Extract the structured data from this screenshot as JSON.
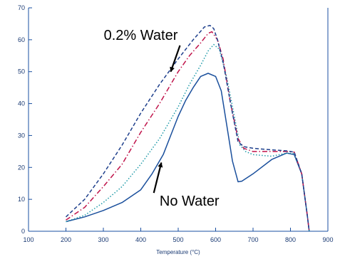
{
  "chart_data": {
    "type": "line",
    "title": "",
    "xlabel": "Temperature (°C)",
    "ylabel": "",
    "xlim": [
      100,
      900
    ],
    "ylim": [
      0,
      70
    ],
    "xticks": [
      "100",
      "200",
      "300",
      "400",
      "500",
      "600",
      "700",
      "800",
      "900"
    ],
    "yticks": [
      "0",
      "10",
      "20",
      "30",
      "40",
      "50",
      "60",
      "70"
    ],
    "grid": false,
    "colors": {
      "axis": "#1a4fa0",
      "tick_text": "#1a3a73"
    },
    "series": [
      {
        "color": "#1a4f9c",
        "style": "solid",
        "x": [
          200,
          250,
          300,
          350,
          400,
          430,
          460,
          480,
          500,
          520,
          540,
          560,
          580,
          600,
          615,
          630,
          645,
          660,
          670,
          700,
          750,
          790,
          810,
          830,
          845,
          850
        ],
        "y": [
          3,
          4.5,
          6.5,
          9,
          13,
          18,
          24,
          30,
          36,
          41,
          45,
          48.5,
          49.5,
          48.5,
          44,
          33,
          22,
          15.5,
          15.7,
          18,
          22.5,
          24.5,
          24,
          18,
          5,
          0
        ]
      },
      {
        "color": "#1e9aa8",
        "style": "dotted",
        "x": [
          200,
          250,
          300,
          350,
          400,
          450,
          500,
          530,
          560,
          580,
          595,
          610,
          630,
          650,
          665,
          680,
          700,
          750,
          790,
          810,
          830,
          845,
          850
        ],
        "y": [
          3,
          5,
          9,
          14,
          21,
          29,
          39,
          46,
          52,
          56.5,
          58.5,
          57,
          48,
          36,
          27,
          25,
          24,
          23.5,
          24.5,
          24.3,
          18,
          5,
          0
        ]
      },
      {
        "color": "#c0134a",
        "style": "dash-dot",
        "x": [
          200,
          250,
          300,
          350,
          400,
          450,
          500,
          530,
          560,
          580,
          590,
          605,
          620,
          640,
          660,
          675,
          700,
          750,
          790,
          810,
          830,
          845,
          850
        ],
        "y": [
          3.5,
          7.5,
          14,
          21,
          31,
          40,
          50,
          55,
          59,
          62,
          62.5,
          60,
          54,
          40,
          29,
          26,
          25,
          25,
          25,
          24.8,
          18,
          5,
          0
        ]
      },
      {
        "color": "#1e3f8c",
        "style": "dashed",
        "x": [
          200,
          250,
          300,
          350,
          400,
          450,
          500,
          540,
          570,
          585,
          595,
          605,
          620,
          640,
          660,
          675,
          700,
          750,
          790,
          810,
          830,
          845,
          850
        ],
        "y": [
          4.5,
          10,
          18,
          27,
          37,
          46,
          54,
          60,
          64,
          64.5,
          63.5,
          60,
          53,
          40,
          28,
          26.5,
          26,
          25.5,
          25.2,
          24.8,
          18,
          5,
          0
        ]
      }
    ],
    "annotations": [
      {
        "text": "0.2% Water",
        "x": 400,
        "y": 60,
        "arrow_to": [
          480,
          50
        ]
      },
      {
        "text": "No Water",
        "x": 530,
        "y": 8,
        "arrow_to": [
          455,
          21.5
        ]
      }
    ]
  }
}
